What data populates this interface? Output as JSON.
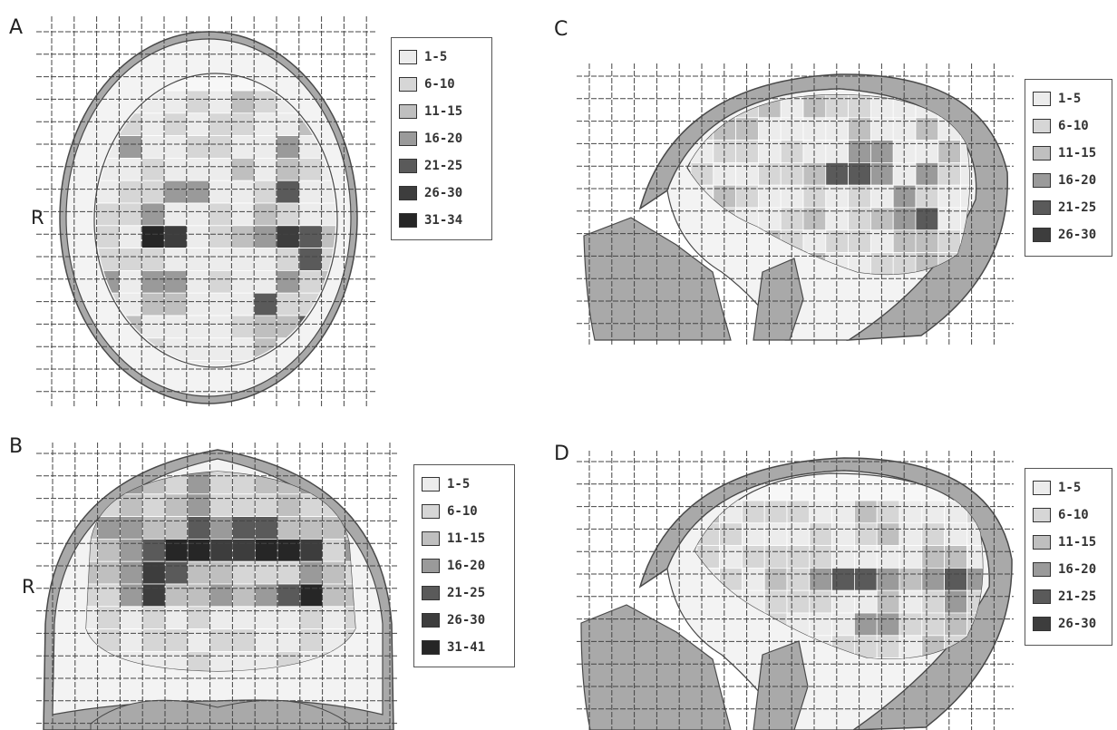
{
  "colors": {
    "bin1": "#ececec",
    "bin2": "#d6d6d6",
    "bin3": "#bfbfbf",
    "bin4": "#9a9a9a",
    "bin5": "#5a5a5a",
    "bin6": "#3d3d3d",
    "bin7": "#262626",
    "scalp": "#a9a9a9",
    "csf": "#f3f3f3",
    "outline": "#4a4a4a",
    "grid": "#444444"
  },
  "panels": [
    {
      "id": "A",
      "label": "A",
      "side_label": "R",
      "legend": [
        "1-5",
        "6-10",
        "11-15",
        "16-20",
        "21-25",
        "26-30",
        "31-34"
      ]
    },
    {
      "id": "B",
      "label": "B",
      "side_label": "R",
      "legend": [
        "1-5",
        "6-10",
        "11-15",
        "16-20",
        "21-25",
        "26-30",
        "31-41"
      ]
    },
    {
      "id": "C",
      "label": "C",
      "side_label": "",
      "legend": [
        "1-5",
        "6-10",
        "11-15",
        "16-20",
        "21-25",
        "26-30"
      ]
    },
    {
      "id": "D",
      "label": "D",
      "side_label": "",
      "legend": [
        "1-5",
        "6-10",
        "11-15",
        "16-20",
        "21-25",
        "26-30"
      ]
    }
  ]
}
